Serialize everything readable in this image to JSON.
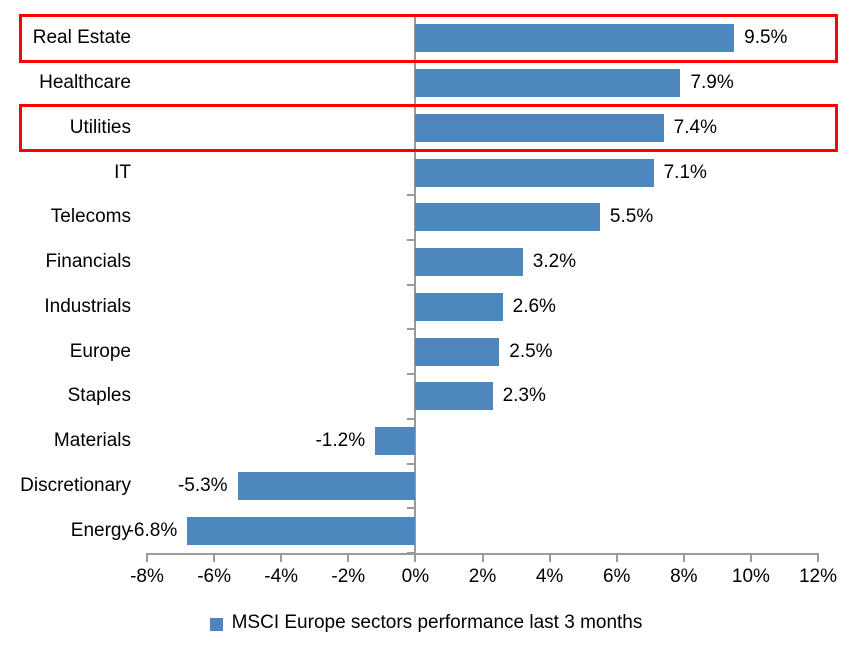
{
  "chart_data": {
    "type": "bar",
    "orientation": "horizontal",
    "categories": [
      "Real Estate",
      "Healthcare",
      "Utilities",
      "IT",
      "Telecoms",
      "Financials",
      "Industrials",
      "Europe",
      "Staples",
      "Materials",
      "Discretionary",
      "Energy"
    ],
    "values": [
      9.5,
      7.9,
      7.4,
      7.1,
      5.5,
      3.2,
      2.6,
      2.5,
      2.3,
      -1.2,
      -5.3,
      -6.8
    ],
    "data_labels": [
      "9.5%",
      "7.9%",
      "7.4%",
      "7.1%",
      "5.5%",
      "3.2%",
      "2.6%",
      "2.5%",
      "2.3%",
      "-1.2%",
      "-5.3%",
      "-6.8%"
    ],
    "x_axis": {
      "min": -8,
      "max": 12,
      "tick_step": 2,
      "tick_labels": [
        "-8%",
        "-6%",
        "-4%",
        "-2%",
        "0%",
        "2%",
        "4%",
        "6%",
        "8%",
        "10%",
        "12%"
      ]
    },
    "legend": "MSCI Europe sectors performance last 3 months",
    "legend_position": "bottom",
    "highlighted_categories": [
      "Real Estate",
      "Utilities"
    ],
    "colors": {
      "bar": "#4E86BE",
      "highlight_border": "#FF0000",
      "axis": "#9A9A9A",
      "text": "#000000",
      "background": "#FFFFFF"
    },
    "grid": false,
    "title": ""
  }
}
